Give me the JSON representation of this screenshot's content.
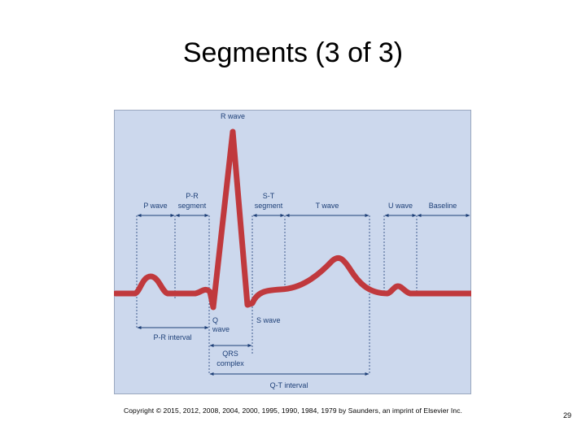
{
  "slide": {
    "title": "Segments (3 of 3)",
    "copyright": "Copyright © 2015, 2012, 2008, 2004, 2000, 1995, 1990, 1984, 1979 by Saunders, an imprint of Elsevier Inc.",
    "page_number": "29"
  },
  "diagram": {
    "labels": {
      "r_wave": "R wave",
      "p_wave": "P wave",
      "pr_segment_1": "P-R",
      "pr_segment_2": "segment",
      "st_segment_1": "S-T",
      "st_segment_2": "segment",
      "t_wave": "T wave",
      "u_wave": "U wave",
      "baseline": "Baseline",
      "q_wave_1": "Q",
      "q_wave_2": "wave",
      "s_wave": "S wave",
      "pr_interval": "P-R interval",
      "qrs_1": "QRS",
      "qrs_2": "complex",
      "qt_interval": "Q-T interval"
    },
    "colors": {
      "panel_bg": "#ccd8ed",
      "trace": "#c0393d",
      "annotation": "#1d3f77"
    }
  }
}
